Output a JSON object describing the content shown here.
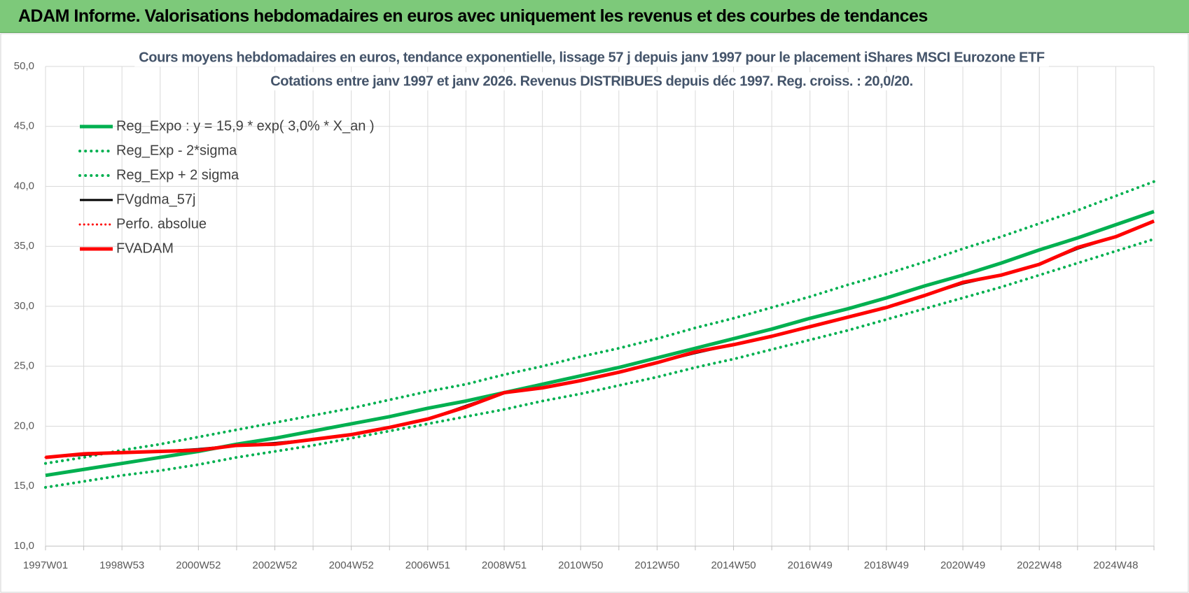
{
  "header": {
    "title": "ADAM Informe. Valorisations hebdomadaires en euros avec uniquement les revenus et des courbes de tendances"
  },
  "chart_data": {
    "type": "line",
    "title": "Cours moyens hebdomadaires en euros, tendance exponentielle, lissage 57 j depuis janv 1997 pour le placement iShares MSCI Eurozone ETF",
    "subtitle": "Cotations entre janv 1997 et janv 2026. Revenus DISTRIBUES depuis déc 1997. Reg. croiss. : 20,0/20.",
    "categories": [
      "1997W01",
      null,
      "1998W53",
      null,
      "2000W52",
      null,
      "2002W52",
      null,
      "2004W52",
      null,
      "2006W51",
      null,
      "2008W51",
      null,
      "2010W50",
      null,
      "2012W50",
      null,
      "2014W50",
      null,
      "2016W49",
      null,
      "2018W49",
      null,
      "2020W49",
      null,
      "2022W48",
      null,
      "2024W48",
      null
    ],
    "ylim": [
      10,
      50
    ],
    "yticks": [
      {
        "value": 10,
        "label": "10,0"
      },
      {
        "value": 15,
        "label": "15,0"
      },
      {
        "value": 20,
        "label": "20,0"
      },
      {
        "value": 25,
        "label": "25,0"
      },
      {
        "value": 30,
        "label": "30,0"
      },
      {
        "value": 35,
        "label": "35,0"
      },
      {
        "value": 40,
        "label": "40,0"
      },
      {
        "value": 45,
        "label": "45,0"
      },
      {
        "value": 50,
        "label": "50,0"
      }
    ],
    "grid": true,
    "legend": "upper-left",
    "series": [
      {
        "name": "Reg_Expo : y = 15,9 * exp( 3,0% *  X_an )",
        "color": "#00b050",
        "width": 5,
        "dotted": false,
        "values": [
          15.9,
          16.4,
          16.9,
          17.4,
          17.9,
          18.5,
          19.0,
          19.6,
          20.2,
          20.8,
          21.5,
          22.1,
          22.8,
          23.5,
          24.2,
          24.9,
          25.7,
          26.5,
          27.3,
          28.1,
          29.0,
          29.8,
          30.7,
          31.7,
          32.6,
          33.6,
          34.7,
          35.7,
          36.8,
          37.9
        ]
      },
      {
        "name": "Reg_Exp - 2*sigma",
        "color": "#00b050",
        "width": 4,
        "dotted": true,
        "values": [
          14.9,
          15.4,
          15.9,
          16.3,
          16.8,
          17.4,
          17.9,
          18.4,
          19.0,
          19.6,
          20.2,
          20.8,
          21.4,
          22.1,
          22.7,
          23.4,
          24.1,
          24.9,
          25.6,
          26.4,
          27.2,
          28.0,
          28.9,
          29.8,
          30.7,
          31.6,
          32.6,
          33.6,
          34.6,
          35.6
        ]
      },
      {
        "name": "Reg_Exp + 2 sigma",
        "color": "#00b050",
        "width": 4,
        "dotted": true,
        "values": [
          16.9,
          17.4,
          18.0,
          18.5,
          19.1,
          19.7,
          20.3,
          20.9,
          21.5,
          22.2,
          22.9,
          23.5,
          24.3,
          25.0,
          25.8,
          26.5,
          27.3,
          28.2,
          29.0,
          29.9,
          30.8,
          31.8,
          32.7,
          33.7,
          34.8,
          35.8,
          36.9,
          38.0,
          39.2,
          40.4
        ]
      },
      {
        "name": "FVgdma_57j",
        "color": "#000000",
        "width": 3,
        "dotted": false,
        "values": [
          17.4,
          17.6,
          17.8,
          17.9,
          18.1,
          18.4,
          18.6,
          18.9,
          19.3,
          19.9,
          20.6,
          21.7,
          22.8,
          23.2,
          23.8,
          24.5,
          25.3,
          26.1,
          26.8,
          27.5,
          28.3,
          29.1,
          29.9,
          30.9,
          31.9,
          32.6,
          33.5,
          34.8,
          35.8,
          37.1
        ]
      },
      {
        "name": "Perfo. absolue",
        "color": "#ff0000",
        "width": 3,
        "dotted": true,
        "values": [
          17.4,
          17.7,
          17.8,
          17.9,
          18.0,
          18.4,
          18.5,
          18.9,
          19.3,
          19.9,
          20.6,
          21.6,
          22.8,
          23.2,
          23.8,
          24.5,
          25.3,
          26.2,
          26.8,
          27.5,
          28.3,
          29.1,
          29.9,
          30.9,
          32.0,
          32.6,
          33.5,
          34.9,
          35.8,
          37.1
        ]
      },
      {
        "name": "FVADAM",
        "color": "#ff0000",
        "width": 5,
        "dotted": false,
        "values": [
          17.4,
          17.7,
          17.8,
          17.9,
          18.0,
          18.4,
          18.5,
          18.9,
          19.3,
          19.9,
          20.6,
          21.6,
          22.8,
          23.2,
          23.8,
          24.5,
          25.3,
          26.2,
          26.8,
          27.5,
          28.3,
          29.1,
          29.9,
          30.9,
          32.0,
          32.6,
          33.5,
          34.9,
          35.8,
          37.1
        ]
      }
    ]
  }
}
